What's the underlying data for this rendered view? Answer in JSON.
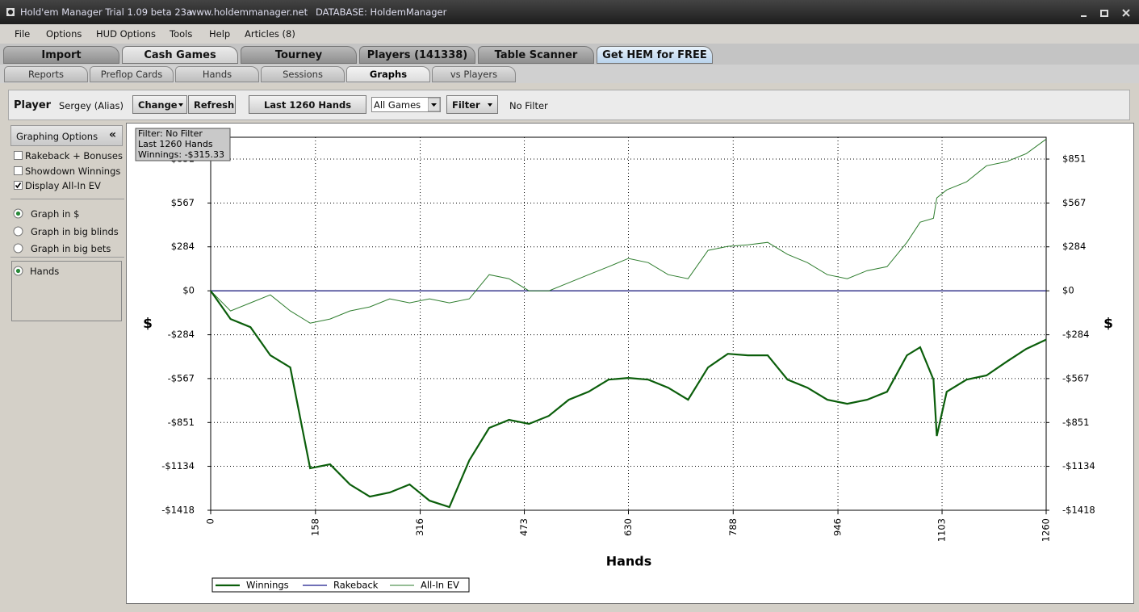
{
  "window": {
    "title": "Hold'em Manager Trial 1.09 beta 23a",
    "url": "www.holdemmanager.net",
    "database": "DATABASE: HoldemManager"
  },
  "menu": [
    "File",
    "Options",
    "HUD Options",
    "Tools",
    "Help",
    "Articles (8)"
  ],
  "tabs": [
    "Import",
    "Cash Games",
    "Tourney",
    "Players (141338)",
    "Table Scanner",
    "Get HEM for FREE"
  ],
  "active_tab": 1,
  "subtabs": [
    "Reports",
    "Preflop Cards",
    "Hands",
    "Sessions",
    "Graphs",
    "vs Players"
  ],
  "active_subtab": 4,
  "toolbar": {
    "player_label": "Player",
    "player": "Sergey (Alias)",
    "change": "Change",
    "refresh": "Refresh",
    "hands": "Last 1260 Hands",
    "games": "All Games",
    "filter": "Filter",
    "filter_status": "No Filter"
  },
  "graph_options": {
    "title": "Graphing Options",
    "collapse": "«",
    "checkboxes": [
      {
        "label": "Rakeback + Bonuses",
        "checked": false
      },
      {
        "label": "Showdown Winnings",
        "checked": false
      },
      {
        "label": "Display All-In EV",
        "checked": true
      }
    ],
    "radios": [
      {
        "label": "Graph in $",
        "selected": true
      },
      {
        "label": "Graph in big blinds",
        "selected": false
      },
      {
        "label": "Graph in big bets",
        "selected": false
      }
    ],
    "x_axis_options": [
      {
        "label": "Hands",
        "selected": true
      }
    ]
  },
  "chart_data": {
    "type": "line",
    "x_label": "Hands",
    "y_label": "$",
    "tooltip": [
      "Filter: No Filter",
      "Last 1260 Hands",
      "Winnings: -$315.33"
    ],
    "x": [
      0,
      30,
      60,
      90,
      120,
      150,
      180,
      210,
      240,
      270,
      300,
      330,
      360,
      390,
      420,
      450,
      480,
      510,
      540,
      570,
      600,
      630,
      660,
      690,
      720,
      750,
      780,
      810,
      840,
      870,
      900,
      930,
      960,
      990,
      1020,
      1050,
      1070,
      1090,
      1095,
      1110,
      1140,
      1170,
      1200,
      1230,
      1260
    ],
    "series": [
      {
        "name": "Winnings",
        "color": "#0b5e0b",
        "values": [
          0,
          -182,
          -235,
          -417,
          -495,
          -1147,
          -1121,
          -1251,
          -1330,
          -1303,
          -1251,
          -1356,
          -1397,
          -1095,
          -886,
          -834,
          -860,
          -808,
          -704,
          -652,
          -574,
          -563,
          -574,
          -626,
          -704,
          -495,
          -407,
          -417,
          -417,
          -574,
          -626,
          -704,
          -730,
          -704,
          -652,
          -417,
          -365,
          -574,
          -938,
          -652,
          -574,
          -547,
          -459,
          -375,
          -315.33
        ]
      },
      {
        "name": "Rakeback",
        "color": "#1a1a8c",
        "values": [
          0,
          0,
          0,
          0,
          0,
          0,
          0,
          0,
          0,
          0,
          0,
          0,
          0,
          0,
          0,
          0,
          0,
          0,
          0,
          0,
          0,
          0,
          0,
          0,
          0,
          0,
          0,
          0,
          0,
          0,
          0,
          0,
          0,
          0,
          0,
          0,
          0,
          0,
          0,
          0,
          0,
          0,
          0,
          0,
          0
        ]
      },
      {
        "name": "All-In EV",
        "color": "#2e7d2e",
        "values": [
          0,
          -130,
          -78,
          -26,
          -130,
          -209,
          -182,
          -130,
          -104,
          -52,
          -78,
          -52,
          -78,
          -52,
          104,
          78,
          0,
          0,
          52,
          104,
          156,
          209,
          182,
          104,
          78,
          261,
          287,
          297,
          313,
          235,
          182,
          104,
          78,
          130,
          156,
          313,
          443,
          469,
          600,
          652,
          704,
          808,
          834,
          886,
          980
        ]
      }
    ],
    "xlim": [
      0,
      1260
    ],
    "xticks": [
      0,
      158,
      316,
      473,
      630,
      788,
      946,
      1103,
      1260
    ],
    "ylim": [
      -1418,
      992
    ],
    "yticks": [
      {
        "value": -1418,
        "label": "-$1418"
      },
      {
        "value": -1134,
        "label": "-$1134"
      },
      {
        "value": -851,
        "label": "-$851"
      },
      {
        "value": -567,
        "label": "-$567"
      },
      {
        "value": -284,
        "label": "-$284"
      },
      {
        "value": 0,
        "label": "$0"
      },
      {
        "value": 284,
        "label": "$284"
      },
      {
        "value": 567,
        "label": "$567"
      },
      {
        "value": 851,
        "label": "$851"
      }
    ],
    "grid": true
  }
}
